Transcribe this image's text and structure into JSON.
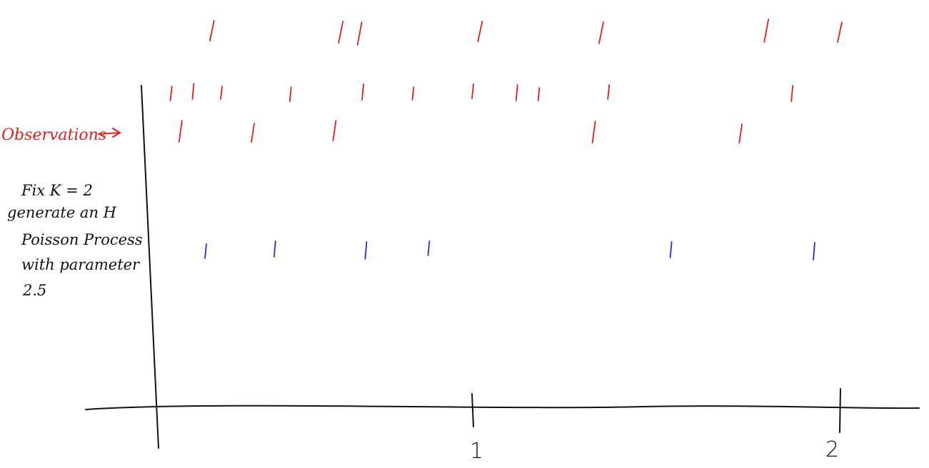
{
  "colors": {
    "ink": "#111111",
    "observations": "#e0201b",
    "generated": "#2a2adf"
  },
  "labels": {
    "observations": "Observations",
    "note_lines": [
      "Fix K = 2",
      "generate an H",
      "Poisson Process",
      "with parameter",
      "2.5"
    ]
  },
  "axis": {
    "tick_labels": [
      "1",
      "2"
    ]
  },
  "chart_data": {
    "type": "scatter",
    "x_range": [
      0,
      2
    ],
    "ticks": [
      1,
      2
    ],
    "rows": [
      {
        "color": "observations",
        "points": [
          0.17,
          0.58,
          0.64,
          1.02,
          1.35,
          1.8,
          2.0
        ]
      },
      {
        "color": "observations",
        "points": [
          0.04,
          0.11,
          0.2,
          0.42,
          0.65,
          0.81,
          1.0,
          1.12,
          1.18,
          1.37,
          1.87
        ]
      },
      {
        "color": "observations",
        "points": [
          0.07,
          0.3,
          0.56,
          1.33,
          1.73
        ]
      },
      {
        "color": "generated",
        "points": [
          0.15,
          0.37,
          0.66,
          0.86,
          1.54,
          1.93
        ]
      }
    ]
  }
}
